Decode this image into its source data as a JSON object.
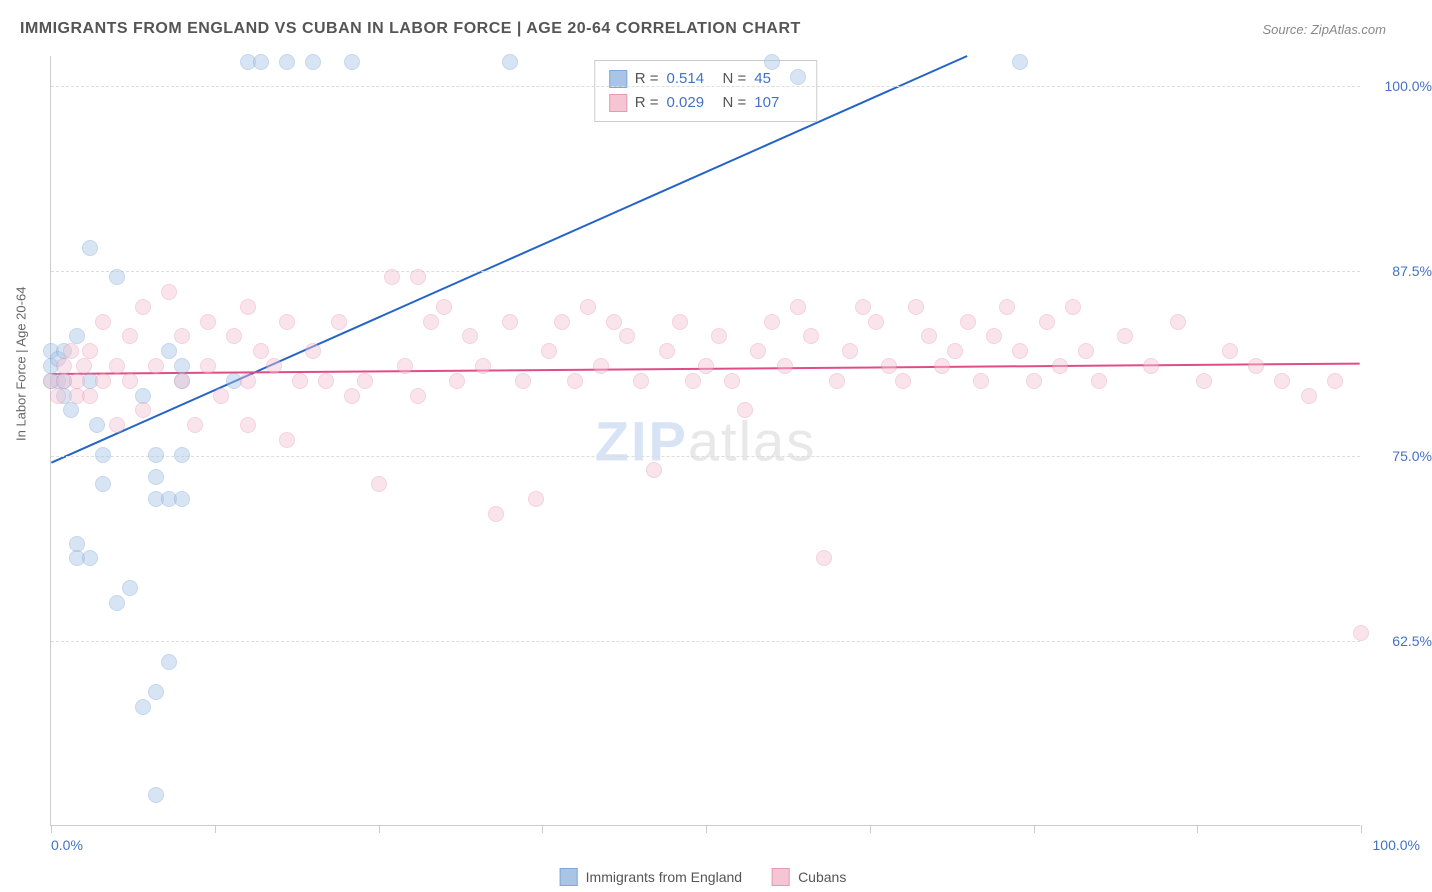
{
  "title": "IMMIGRANTS FROM ENGLAND VS CUBAN IN LABOR FORCE | AGE 20-64 CORRELATION CHART",
  "source_prefix": "Source: ",
  "source_name": "ZipAtlas.com",
  "watermark_zip": "ZIP",
  "watermark_atlas": "atlas",
  "yaxis_label": "In Labor Force | Age 20-64",
  "chart": {
    "type": "scatter",
    "xlim": [
      0,
      100
    ],
    "ylim": [
      50,
      102
    ],
    "xaxis_min_label": "0.0%",
    "xaxis_max_label": "100.0%",
    "ytick_labels": [
      {
        "y": 62.5,
        "label": "62.5%"
      },
      {
        "y": 75.0,
        "label": "75.0%"
      },
      {
        "y": 87.5,
        "label": "87.5%"
      },
      {
        "y": 100.0,
        "label": "100.0%"
      }
    ],
    "xtick_positions": [
      0,
      12.5,
      25,
      37.5,
      50,
      62.5,
      75,
      87.5,
      100
    ],
    "grid_color": "#dddddd",
    "background_color": "#ffffff",
    "marker_radius": 8,
    "marker_opacity": 0.45,
    "marker_border_width": 1.5
  },
  "series": [
    {
      "name": "Immigrants from England",
      "fill_color": "#a8c5e8",
      "border_color": "#7fa8d6",
      "trend_color": "#2563c9",
      "trend_width": 2,
      "R": "0.514",
      "N": "45",
      "trend": {
        "x1": 0,
        "y1": 74.5,
        "x2": 70,
        "y2": 102
      },
      "points": [
        [
          0,
          80
        ],
        [
          0,
          81
        ],
        [
          0,
          82
        ],
        [
          0.5,
          80
        ],
        [
          0.5,
          81.5
        ],
        [
          1,
          79
        ],
        [
          1,
          80
        ],
        [
          1,
          82
        ],
        [
          1.5,
          78
        ],
        [
          2,
          83
        ],
        [
          2,
          68
        ],
        [
          2,
          69
        ],
        [
          3,
          68
        ],
        [
          3,
          80
        ],
        [
          3,
          89
        ],
        [
          3.5,
          77
        ],
        [
          4,
          73
        ],
        [
          4,
          75
        ],
        [
          5,
          87
        ],
        [
          5,
          65
        ],
        [
          6,
          66
        ],
        [
          7,
          79
        ],
        [
          8,
          72
        ],
        [
          8,
          73.5
        ],
        [
          8,
          75
        ],
        [
          9,
          72
        ],
        [
          9,
          82
        ],
        [
          7,
          58
        ],
        [
          8,
          59
        ],
        [
          9,
          61
        ],
        [
          10,
          80
        ],
        [
          10,
          81
        ],
        [
          10,
          75
        ],
        [
          10,
          72
        ],
        [
          8,
          52
        ],
        [
          14,
          80
        ],
        [
          15,
          101.5
        ],
        [
          16,
          101.5
        ],
        [
          18,
          101.5
        ],
        [
          20,
          101.5
        ],
        [
          23,
          101.5
        ],
        [
          35,
          101.5
        ],
        [
          55,
          101.5
        ],
        [
          57,
          100.5
        ],
        [
          74,
          101.5
        ]
      ]
    },
    {
      "name": "Cubans",
      "fill_color": "#f5c5d4",
      "border_color": "#e89ab5",
      "trend_color": "#e04d86",
      "trend_width": 2,
      "R": "0.029",
      "N": "107",
      "trend": {
        "x1": 0,
        "y1": 80.5,
        "x2": 100,
        "y2": 81.2
      },
      "points": [
        [
          0,
          80
        ],
        [
          0.5,
          79
        ],
        [
          1,
          80
        ],
        [
          1,
          81
        ],
        [
          1.5,
          82
        ],
        [
          2,
          80
        ],
        [
          2,
          79
        ],
        [
          2.5,
          81
        ],
        [
          3,
          82
        ],
        [
          3,
          79
        ],
        [
          4,
          80
        ],
        [
          4,
          84
        ],
        [
          5,
          81
        ],
        [
          5,
          77
        ],
        [
          6,
          83
        ],
        [
          6,
          80
        ],
        [
          7,
          85
        ],
        [
          7,
          78
        ],
        [
          8,
          81
        ],
        [
          9,
          86
        ],
        [
          10,
          80
        ],
        [
          10,
          83
        ],
        [
          11,
          77
        ],
        [
          12,
          81
        ],
        [
          12,
          84
        ],
        [
          13,
          79
        ],
        [
          14,
          83
        ],
        [
          15,
          80
        ],
        [
          15,
          77
        ],
        [
          16,
          82
        ],
        [
          17,
          81
        ],
        [
          18,
          84
        ],
        [
          18,
          76
        ],
        [
          19,
          80
        ],
        [
          20,
          82
        ],
        [
          21,
          80
        ],
        [
          22,
          84
        ],
        [
          23,
          79
        ],
        [
          24,
          80
        ],
        [
          25,
          73
        ],
        [
          26,
          87
        ],
        [
          27,
          81
        ],
        [
          28,
          79
        ],
        [
          29,
          84
        ],
        [
          30,
          85
        ],
        [
          31,
          80
        ],
        [
          32,
          83
        ],
        [
          33,
          81
        ],
        [
          34,
          71
        ],
        [
          35,
          84
        ],
        [
          36,
          80
        ],
        [
          37,
          72
        ],
        [
          38,
          82
        ],
        [
          39,
          84
        ],
        [
          40,
          80
        ],
        [
          41,
          85
        ],
        [
          42,
          81
        ],
        [
          43,
          84
        ],
        [
          44,
          83
        ],
        [
          45,
          80
        ],
        [
          46,
          74
        ],
        [
          47,
          82
        ],
        [
          48,
          84
        ],
        [
          49,
          80
        ],
        [
          50,
          81
        ],
        [
          51,
          83
        ],
        [
          52,
          80
        ],
        [
          53,
          78
        ],
        [
          54,
          82
        ],
        [
          55,
          84
        ],
        [
          56,
          81
        ],
        [
          57,
          85
        ],
        [
          58,
          83
        ],
        [
          59,
          68
        ],
        [
          60,
          80
        ],
        [
          61,
          82
        ],
        [
          62,
          85
        ],
        [
          63,
          84
        ],
        [
          64,
          81
        ],
        [
          65,
          80
        ],
        [
          66,
          85
        ],
        [
          67,
          83
        ],
        [
          68,
          81
        ],
        [
          69,
          82
        ],
        [
          70,
          84
        ],
        [
          71,
          80
        ],
        [
          72,
          83
        ],
        [
          73,
          85
        ],
        [
          74,
          82
        ],
        [
          75,
          80
        ],
        [
          76,
          84
        ],
        [
          77,
          81
        ],
        [
          78,
          85
        ],
        [
          79,
          82
        ],
        [
          80,
          80
        ],
        [
          82,
          83
        ],
        [
          84,
          81
        ],
        [
          86,
          84
        ],
        [
          88,
          80
        ],
        [
          90,
          82
        ],
        [
          92,
          81
        ],
        [
          94,
          80
        ],
        [
          96,
          79
        ],
        [
          98,
          80
        ],
        [
          100,
          63
        ],
        [
          15,
          85
        ],
        [
          28,
          87
        ]
      ]
    }
  ],
  "legend_top": {
    "r_label": "R =",
    "n_label": "N ="
  },
  "legend_bottom_labels": [
    "Immigrants from England",
    "Cubans"
  ]
}
